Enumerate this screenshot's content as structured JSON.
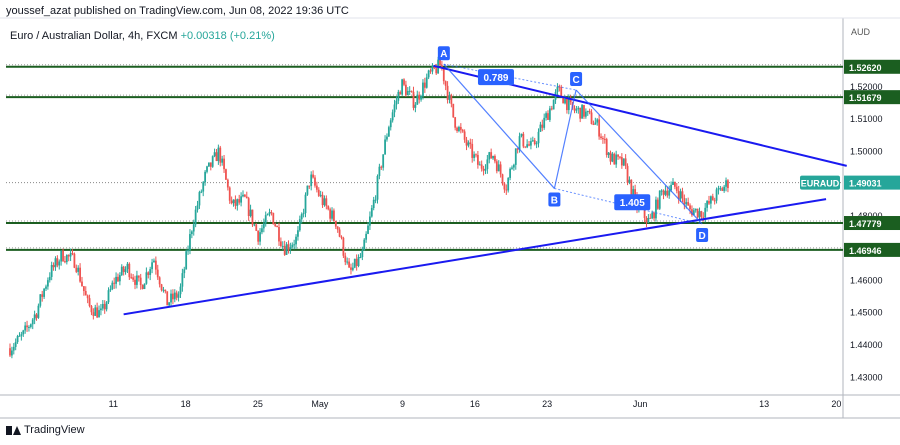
{
  "publisher": {
    "user": "youssef_azat",
    "text": "published on TradingView.com, Jun 08, 2022 19:36 UTC"
  },
  "legend": {
    "symbol": "Euro / Australian Dollar, 4h, FXCM",
    "change": "+0.00318 (+0.21%)"
  },
  "footer": {
    "brand": "TradingView"
  },
  "colors": {
    "up": "#26a69a",
    "down": "#ef5350",
    "hline": "#1b5e20",
    "trend": "#1a1af0",
    "pattern": "#2962ff",
    "label_bg": "#2962ff"
  },
  "chart_data": {
    "type": "candlestick",
    "symbol_label": "EURAUD",
    "currency": "AUD",
    "last_price": "1.49031",
    "y_range": [
      1.4245,
      1.5345
    ],
    "y_ticks": [
      "1.52000",
      "1.51000",
      "1.50000",
      "1.48000",
      "1.46000",
      "1.45000",
      "1.44000",
      "1.43000"
    ],
    "x_ticks": [
      "11",
      "18",
      "25",
      "May",
      "9",
      "16",
      "23",
      "Jun",
      "13",
      "20"
    ],
    "horizontal_levels": [
      "1.52620",
      "1.51679",
      "1.47779",
      "1.46946"
    ],
    "trendlines": [
      {
        "from": [
          "Apr 12",
          1.4495
        ],
        "to": [
          "Jun 19",
          1.4852
        ]
      },
      {
        "from": [
          "May 12",
          1.5265
        ],
        "to": [
          "Jun 21",
          1.4955
        ]
      }
    ],
    "harmonic_points": [
      {
        "label": "A",
        "price": 1.527
      },
      {
        "label": "B",
        "price": 1.4885
      },
      {
        "label": "C",
        "price": 1.519
      },
      {
        "label": "D",
        "price": 1.4775
      }
    ],
    "ratios": [
      "0.789",
      "1.405"
    ],
    "ohlc_anchor_prices": [
      1.439,
      1.443,
      1.45,
      1.462,
      1.468,
      1.466,
      1.452,
      1.4495,
      1.46,
      1.464,
      1.458,
      1.467,
      1.453,
      1.456,
      1.478,
      1.493,
      1.5,
      1.483,
      1.485,
      1.474,
      1.481,
      1.47,
      1.473,
      1.492,
      1.484,
      1.478,
      1.462,
      1.468,
      1.487,
      1.508,
      1.521,
      1.515,
      1.523,
      1.527,
      1.51,
      1.502,
      1.495,
      1.499,
      1.489,
      1.504,
      1.501,
      1.51,
      1.519,
      1.513,
      1.512,
      1.508,
      1.498,
      1.496,
      1.483,
      1.478,
      1.488,
      1.489,
      1.482,
      1.481,
      1.486,
      1.4903
    ]
  }
}
